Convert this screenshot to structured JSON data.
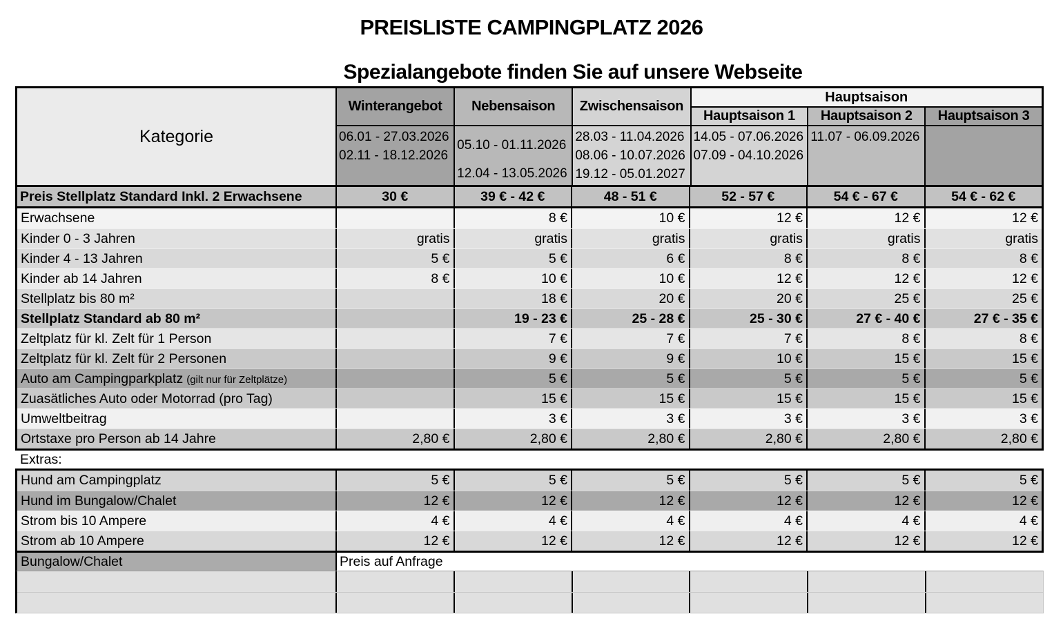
{
  "title": "PREISLISTE CAMPINGPLATZ 2026",
  "subtitle": "Spezialangebote finden Sie auf unsere Webseite",
  "table": {
    "category_header": "Kategorie",
    "season_columns": [
      {
        "label": "Winterangebot",
        "dates": [
          "06.01 - 27.03.2026",
          "02.11 - 18.12.2026"
        ]
      },
      {
        "label": "Nebensaison",
        "dates": [
          "05.10 - 01.11.2026",
          "12.04 - 13.05.2026"
        ]
      },
      {
        "label": "Zwischensaison",
        "dates": [
          "28.03 - 11.04.2026",
          "08.06 - 10.07.2026",
          "19.12 - 05.01.2027"
        ]
      }
    ],
    "hauptsaison_group": {
      "label": "Hauptsaison",
      "sub_columns": [
        {
          "label": "Hauptsaison 1",
          "dates": [
            "14.05 - 07.06.2026",
            "07.09 - 04.10.2026"
          ]
        },
        {
          "label": "Hauptsaison 2",
          "dates": [
            "11.07 - 06.09.2026"
          ]
        },
        {
          "label": "Hauptsaison 3",
          "dates": []
        }
      ]
    },
    "price_row": {
      "label": "Preis Stellplatz Standard Inkl. 2 Erwachsene",
      "values": [
        "30 €",
        "39 € - 42 €",
        "48 - 51 €",
        "52 - 57 €",
        "54 € - 67 €",
        "54 € - 62 €"
      ]
    },
    "rows": [
      {
        "label": "Erwachsene",
        "values": [
          "",
          "8 €",
          "10 €",
          "12 €",
          "12 €",
          "12 €"
        ]
      },
      {
        "label": "Kinder 0 - 3 Jahren",
        "values": [
          "gratis",
          "gratis",
          "gratis",
          "gratis",
          "gratis",
          "gratis"
        ]
      },
      {
        "label": "Kinder 4 - 13 Jahren",
        "values": [
          "5 €",
          "5 €",
          "6 €",
          "8 €",
          "8 €",
          "8 €"
        ]
      },
      {
        "label": "Kinder ab 14 Jahren",
        "values": [
          "8 €",
          "10 €",
          "10 €",
          "12 €",
          "12 €",
          "12 €"
        ]
      },
      {
        "label": "Stellplatz bis 80 m²",
        "values": [
          "",
          "18 €",
          "20 €",
          "20 €",
          "25 €",
          "25 €"
        ]
      },
      {
        "label": "Stellplatz Standard ab 80 m²",
        "values": [
          "",
          "19 - 23 €",
          "25 - 28 €",
          "25 - 30 €",
          "27 € - 40 €",
          "27 € - 35 €"
        ]
      },
      {
        "label": "Zeltplatz für kl. Zelt für 1 Person",
        "values": [
          "",
          "7 €",
          "7 €",
          "7 €",
          "8 €",
          "8 €"
        ]
      },
      {
        "label": "Zeltplatz für kl. Zelt für 2 Personen",
        "values": [
          "",
          "9 €",
          "9 €",
          "10 €",
          "15 €",
          "15 €"
        ]
      },
      {
        "label": "Auto am Campingparkplatz",
        "note": "(gilt nur für Zeltplätze)",
        "values": [
          "",
          "5 €",
          "5 €",
          "5 €",
          "5 €",
          "5 €"
        ]
      },
      {
        "label": "Zuasätliches Auto oder Motorrad (pro Tag)",
        "values": [
          "",
          "15 €",
          "15 €",
          "15 €",
          "15 €",
          "15 €"
        ]
      },
      {
        "label": "Umweltbeitrag",
        "values": [
          "",
          "3 €",
          "3 €",
          "3 €",
          "3 €",
          "3 €"
        ]
      },
      {
        "label": "Ortstaxe pro Person ab 14 Jahre",
        "values": [
          "2,80 €",
          "2,80 €",
          "2,80 €",
          "2,80 €",
          "2,80 €",
          "2,80 €"
        ]
      }
    ],
    "extras_label": "Extras:",
    "extras_rows": [
      {
        "label": "Hund am Campingplatz",
        "values": [
          "5 €",
          "5 €",
          "5 €",
          "5 €",
          "5 €",
          "5 €"
        ]
      },
      {
        "label": "Hund im Bungalow/Chalet",
        "values": [
          "12 €",
          "12 €",
          "12 €",
          "12 €",
          "12 €",
          "12 €"
        ]
      },
      {
        "label": "Strom bis 10 Ampere",
        "values": [
          "4 €",
          "4 €",
          "4 €",
          "4 €",
          "4 €",
          "4 €"
        ]
      },
      {
        "label": "Strom ab 10 Ampere",
        "values": [
          "12 €",
          "12 €",
          "12 €",
          "12 €",
          "12 €",
          "12 €"
        ]
      }
    ],
    "bungalow_row": {
      "label": "Bungalow/Chalet",
      "value": "Preis auf Anfrage"
    }
  },
  "colors": {
    "border": "#000000",
    "kategorie_bg": "#ebebeb",
    "winterangebot_bg": "#a3a3a3",
    "nebensaison_bg": "#b8b8b8",
    "zwischensaison_bg": "#d4d4d4",
    "hauptsaison_span_bg": "#f3f3f3",
    "hauptsaison1_bg": "#d4d4d4",
    "hauptsaison2_bg": "#bdbdbd",
    "hauptsaison3_bg": "#a3a3a3",
    "price_row_bg": "#c2c2c2",
    "dark_row_bg": "#a9a9a9"
  }
}
